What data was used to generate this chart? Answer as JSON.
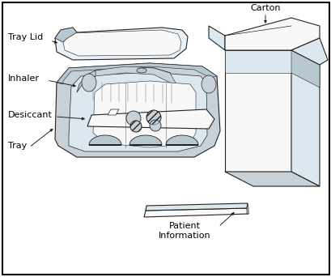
{
  "background_color": "#ffffff",
  "labels": {
    "tray_lid": "Tray Lid",
    "inhaler": "Inhaler",
    "desiccant": "Desiccant",
    "tray": "Tray",
    "carton": "Carton",
    "patient_info": "Patient\nInformation"
  },
  "fill_light": "#dce8f0",
  "fill_light2": "#e8f0f8",
  "fill_medium": "#b8c8d0",
  "fill_gray": "#c8d0d8",
  "fill_dark": "#9098a0",
  "fill_white": "#f8f8f8",
  "line_color": "#222222",
  "line_width": 0.8
}
